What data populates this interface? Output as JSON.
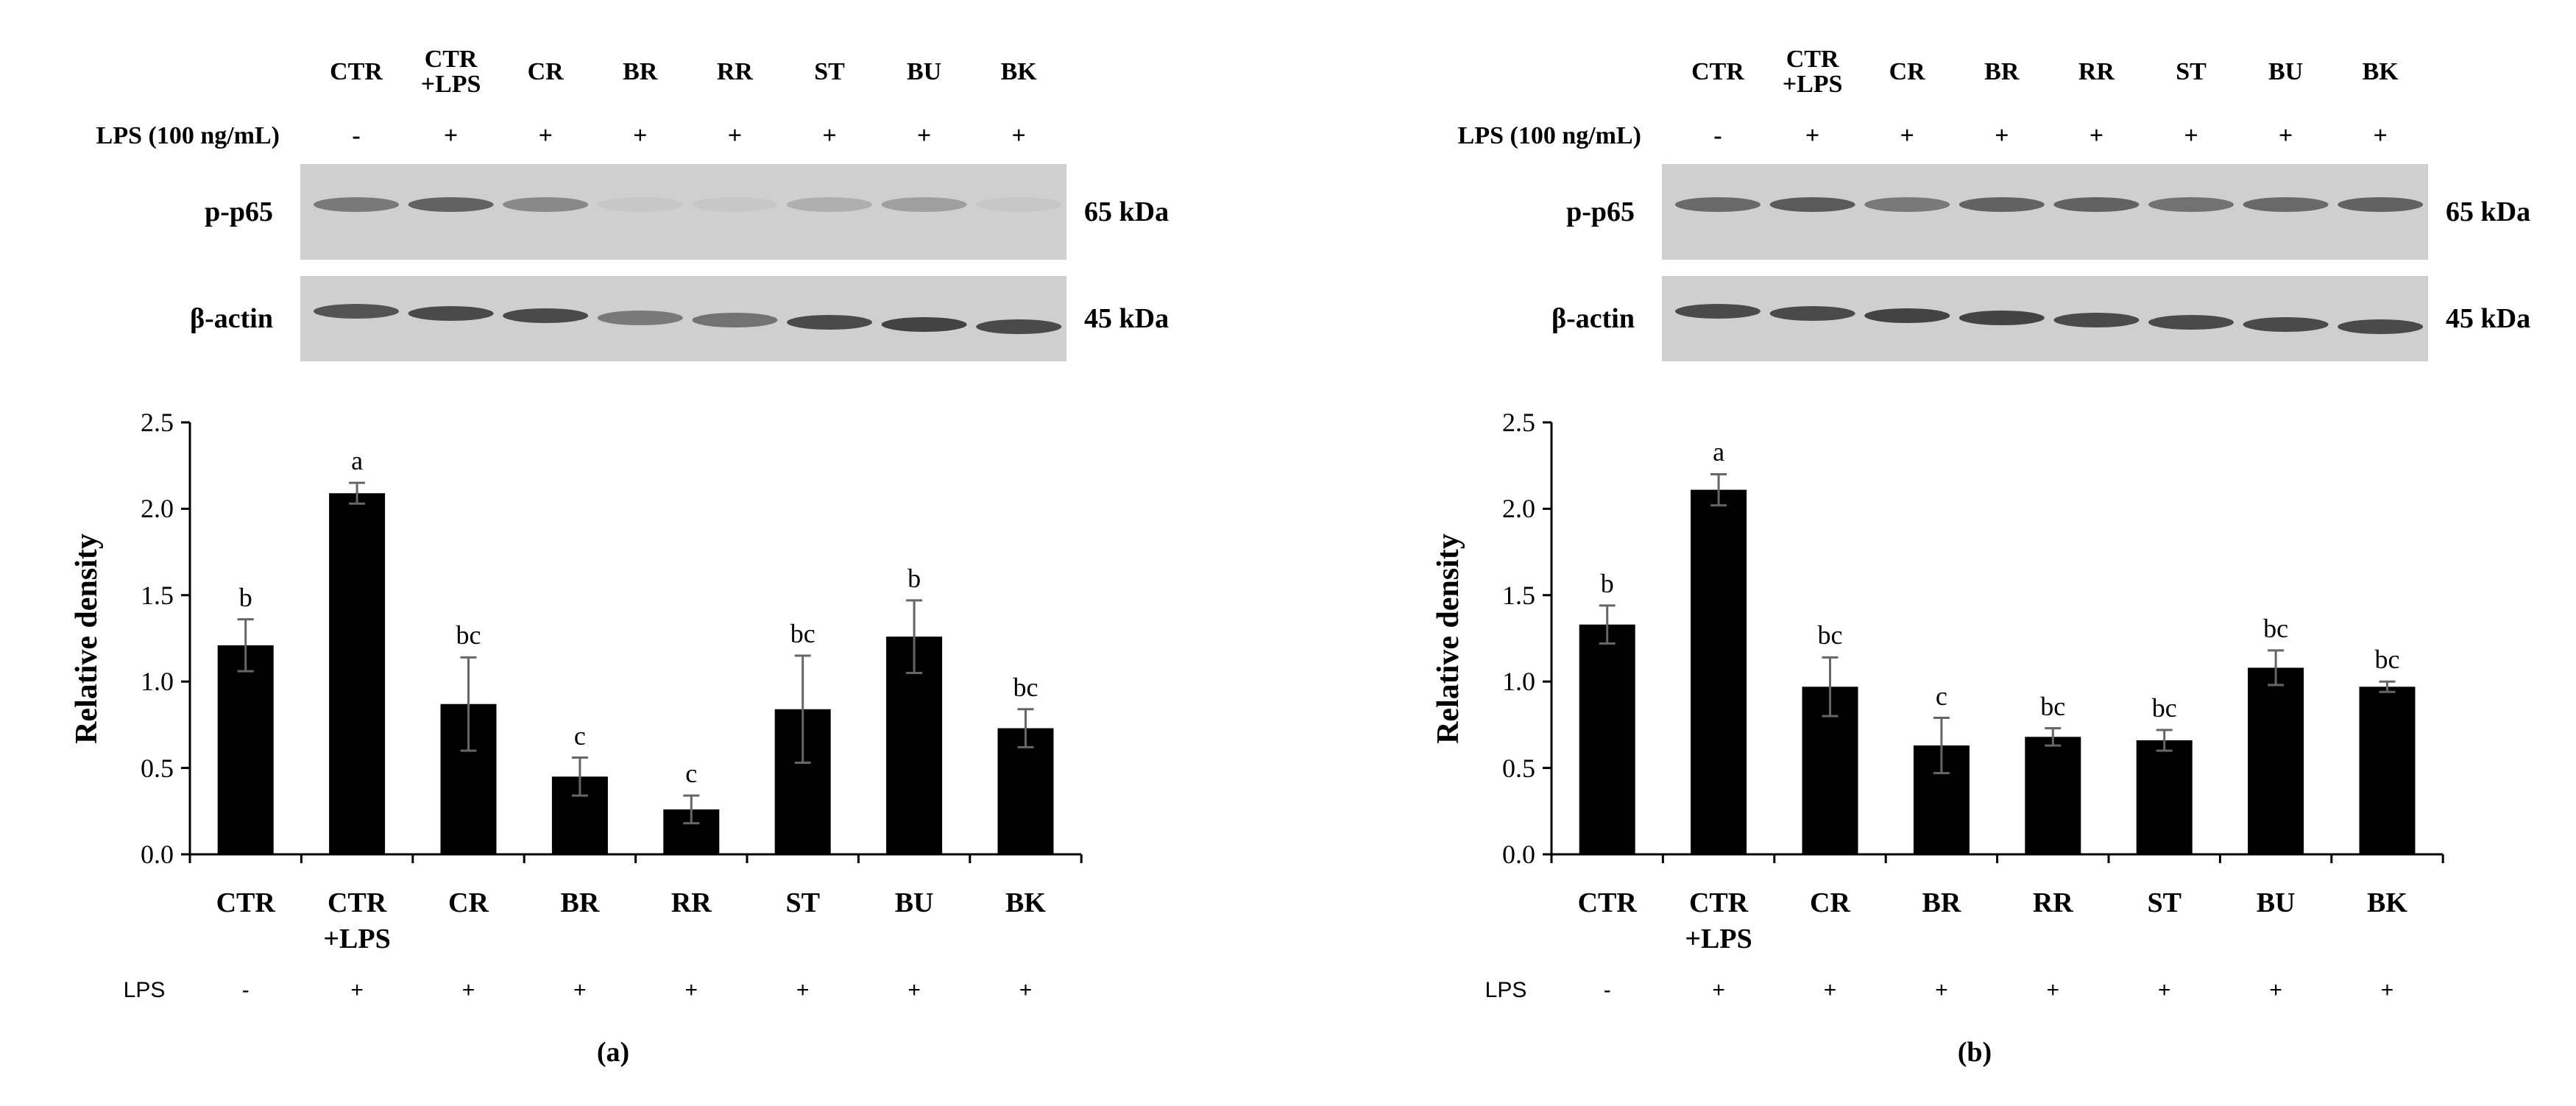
{
  "panel_labels": [
    "(a)",
    "(b)"
  ],
  "blots": [
    {
      "lps_label": "LPS (100 ng/mL)",
      "lanes": [
        "CTR",
        "CTR +LPS",
        "CR",
        "BR",
        "RR",
        "ST",
        "BU",
        "BK"
      ],
      "lps": [
        "-",
        "+",
        "+",
        "+",
        "+",
        "+",
        "+",
        "+"
      ],
      "rows": [
        {
          "name": "p-p65",
          "size": "65 kDa"
        },
        {
          "name": "β-actin",
          "size": "45 kDa"
        }
      ]
    },
    {
      "lps_label": "LPS (100 ng/mL)",
      "lanes": [
        "CTR",
        "CTR +LPS",
        "CR",
        "BR",
        "RR",
        "ST",
        "BU",
        "BK"
      ],
      "lps": [
        "-",
        "+",
        "+",
        "+",
        "+",
        "+",
        "+",
        "+"
      ],
      "rows": [
        {
          "name": "p-p65",
          "size": "65 kDa"
        },
        {
          "name": "β-actin",
          "size": "45 kDa"
        }
      ]
    }
  ],
  "chart_data": [
    {
      "type": "bar",
      "ylabel": "Relative density",
      "color": "#000000",
      "categories": [
        "CTR",
        "CTR +LPS",
        "CR",
        "BR",
        "RR",
        "ST",
        "BU",
        "BK"
      ],
      "values": [
        1.21,
        2.09,
        0.87,
        0.45,
        0.26,
        0.84,
        1.26,
        0.73
      ],
      "errors": [
        0.15,
        0.06,
        0.27,
        0.11,
        0.08,
        0.31,
        0.21,
        0.11
      ],
      "annotations": [
        "b",
        "a",
        "bc",
        "c",
        "c",
        "bc",
        "b",
        "bc"
      ],
      "ylim": [
        0,
        2.5
      ],
      "yticks": [
        {
          "value": 0,
          "label": "0.0"
        },
        0.5,
        {
          "value": 1,
          "label": "1.0"
        },
        1.5,
        {
          "value": 2,
          "label": "2.0"
        },
        2.5
      ],
      "row_label": "LPS",
      "row_values": [
        "-",
        "+",
        "+",
        "+",
        "+",
        "+",
        "+",
        "+"
      ]
    },
    {
      "type": "bar",
      "ylabel": "Relative density",
      "color": "#000000",
      "categories": [
        "CTR",
        "CTR +LPS",
        "CR",
        "BR",
        "RR",
        "ST",
        "BU",
        "BK"
      ],
      "values": [
        1.33,
        2.11,
        0.97,
        0.63,
        0.68,
        0.66,
        1.08,
        0.97
      ],
      "errors": [
        0.11,
        0.09,
        0.17,
        0.16,
        0.05,
        0.06,
        0.1,
        0.03
      ],
      "annotations": [
        "b",
        "a",
        "bc",
        "c",
        "bc",
        "bc",
        "bc",
        "bc"
      ],
      "ylim": [
        0,
        2.5
      ],
      "yticks": [
        {
          "value": 0,
          "label": "0.0"
        },
        0.5,
        {
          "value": 1,
          "label": "1.0"
        },
        1.5,
        {
          "value": 2,
          "label": "2.0"
        },
        2.5
      ],
      "row_label": "LPS",
      "row_values": [
        "-",
        "+",
        "+",
        "+",
        "+",
        "+",
        "+",
        "+"
      ]
    }
  ]
}
